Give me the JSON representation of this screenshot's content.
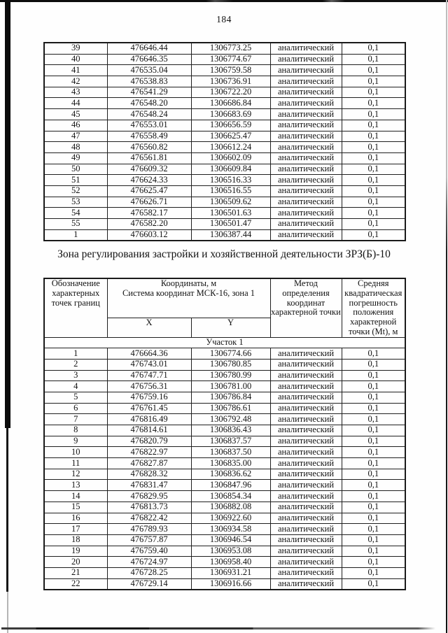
{
  "page_number": "184",
  "section_title": "Зона регулирования застройки и хозяйственной деятельности ЗРЗ(Б)-10",
  "table1": {
    "rows": [
      [
        "39",
        "476646.44",
        "1306773.25",
        "аналитический",
        "0,1"
      ],
      [
        "40",
        "476646.35",
        "1306774.67",
        "аналитический",
        "0,1"
      ],
      [
        "41",
        "476535.04",
        "1306759.58",
        "аналитический",
        "0,1"
      ],
      [
        "42",
        "476538.83",
        "1306736.91",
        "аналитический",
        "0,1"
      ],
      [
        "43",
        "476541.29",
        "1306722.20",
        "аналитический",
        "0,1"
      ],
      [
        "44",
        "476548.20",
        "1306686.84",
        "аналитический",
        "0,1"
      ],
      [
        "45",
        "476548.24",
        "1306683.69",
        "аналитический",
        "0,1"
      ],
      [
        "46",
        "476553.01",
        "1306656.59",
        "аналитический",
        "0,1"
      ],
      [
        "47",
        "476558.49",
        "1306625.47",
        "аналитический",
        "0,1"
      ],
      [
        "48",
        "476560.82",
        "1306612.24",
        "аналитический",
        "0,1"
      ],
      [
        "49",
        "476561.81",
        "1306602.09",
        "аналитический",
        "0,1"
      ],
      [
        "50",
        "476609.32",
        "1306609.84",
        "аналитический",
        "0,1"
      ],
      [
        "51",
        "476624.33",
        "1306516.33",
        "аналитический",
        "0,1"
      ],
      [
        "52",
        "476625.47",
        "1306516.55",
        "аналитический",
        "0,1"
      ],
      [
        "53",
        "476626.71",
        "1306509.62",
        "аналитический",
        "0,1"
      ],
      [
        "54",
        "476582.17",
        "1306501.63",
        "аналитический",
        "0,1"
      ],
      [
        "55",
        "476582.20",
        "1306501.47",
        "аналитический",
        "0,1"
      ],
      [
        "1",
        "476603.12",
        "1306387.44",
        "аналитический",
        "0,1"
      ]
    ]
  },
  "table2": {
    "header": {
      "designation": "Обозначение характерных точек границ",
      "coords_line1": "Координаты, м",
      "coords_line2": "Система координат МСК-16, зона 1",
      "x": "X",
      "y": "Y",
      "method": "Метод определения координат характерной точки",
      "mt": "Средняя квадратическая погрешность положения характерной точки (Mt), м"
    },
    "subsection": "Участок 1",
    "rows": [
      [
        "1",
        "476664.36",
        "1306774.66",
        "аналитический",
        "0,1"
      ],
      [
        "2",
        "476743.01",
        "1306780.85",
        "аналитический",
        "0,1"
      ],
      [
        "3",
        "476747.71",
        "1306780.99",
        "аналитический",
        "0,1"
      ],
      [
        "4",
        "476756.31",
        "1306781.00",
        "аналитический",
        "0,1"
      ],
      [
        "5",
        "476759.16",
        "1306786.84",
        "аналитический",
        "0,1"
      ],
      [
        "6",
        "476761.45",
        "1306786.61",
        "аналитический",
        "0,1"
      ],
      [
        "7",
        "476816.49",
        "1306792.48",
        "аналитический",
        "0,1"
      ],
      [
        "8",
        "476814.61",
        "1306836.43",
        "аналитический",
        "0,1"
      ],
      [
        "9",
        "476820.79",
        "1306837.57",
        "аналитический",
        "0,1"
      ],
      [
        "10",
        "476822.97",
        "1306837.50",
        "аналитический",
        "0,1"
      ],
      [
        "11",
        "476827.87",
        "1306835.00",
        "аналитический",
        "0,1"
      ],
      [
        "12",
        "476828.32",
        "1306836.62",
        "аналитический",
        "0,1"
      ],
      [
        "13",
        "476831.47",
        "1306847.96",
        "аналитический",
        "0,1"
      ],
      [
        "14",
        "476829.95",
        "1306854.34",
        "аналитический",
        "0,1"
      ],
      [
        "15",
        "476813.73",
        "1306882.08",
        "аналитический",
        "0,1"
      ],
      [
        "16",
        "476822.42",
        "1306922.60",
        "аналитический",
        "0,1"
      ],
      [
        "17",
        "476789.93",
        "1306934.58",
        "аналитический",
        "0,1"
      ],
      [
        "18",
        "476757.87",
        "1306946.54",
        "аналитический",
        "0,1"
      ],
      [
        "19",
        "476759.40",
        "1306953.08",
        "аналитический",
        "0,1"
      ],
      [
        "20",
        "476724.97",
        "1306958.40",
        "аналитический",
        "0,1"
      ],
      [
        "21",
        "476728.25",
        "1306931.21",
        "аналитический",
        "0,1"
      ],
      [
        "22",
        "476729.14",
        "1306916.66",
        "аналитический",
        "0,1"
      ]
    ]
  }
}
